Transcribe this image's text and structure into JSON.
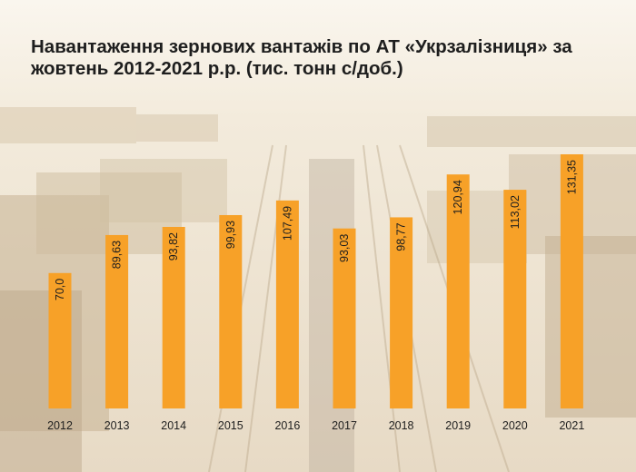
{
  "title": "Навантаження зернових вантажів по АТ «Укрзалізниця» за жовтень 2012-2021 р.р. (тис. тонн с/доб.)",
  "colors": {
    "bar": "#f7a128",
    "text": "#1e1e1e",
    "background": "#f6efe3"
  },
  "chart_data": {
    "type": "bar",
    "title": "Навантаження зернових вантажів по АТ «Укрзалізниця» за жовтень 2012-2021 р.р. (тис. тонн с/доб.)",
    "categories": [
      "2012",
      "2013",
      "2014",
      "2015",
      "2016",
      "2017",
      "2018",
      "2019",
      "2020",
      "2021"
    ],
    "values": [
      70.0,
      89.63,
      93.82,
      99.93,
      107.49,
      93.03,
      98.77,
      120.94,
      113.02,
      131.35
    ],
    "labels": [
      "70,0",
      "89,63",
      "93,82",
      "99,93",
      "107,49",
      "93,03",
      "98,77",
      "120,94",
      "113,02",
      "131,35"
    ],
    "xlabel": "",
    "ylabel": "",
    "ylim": [
      0,
      150
    ],
    "grid": false,
    "legend": "none"
  }
}
